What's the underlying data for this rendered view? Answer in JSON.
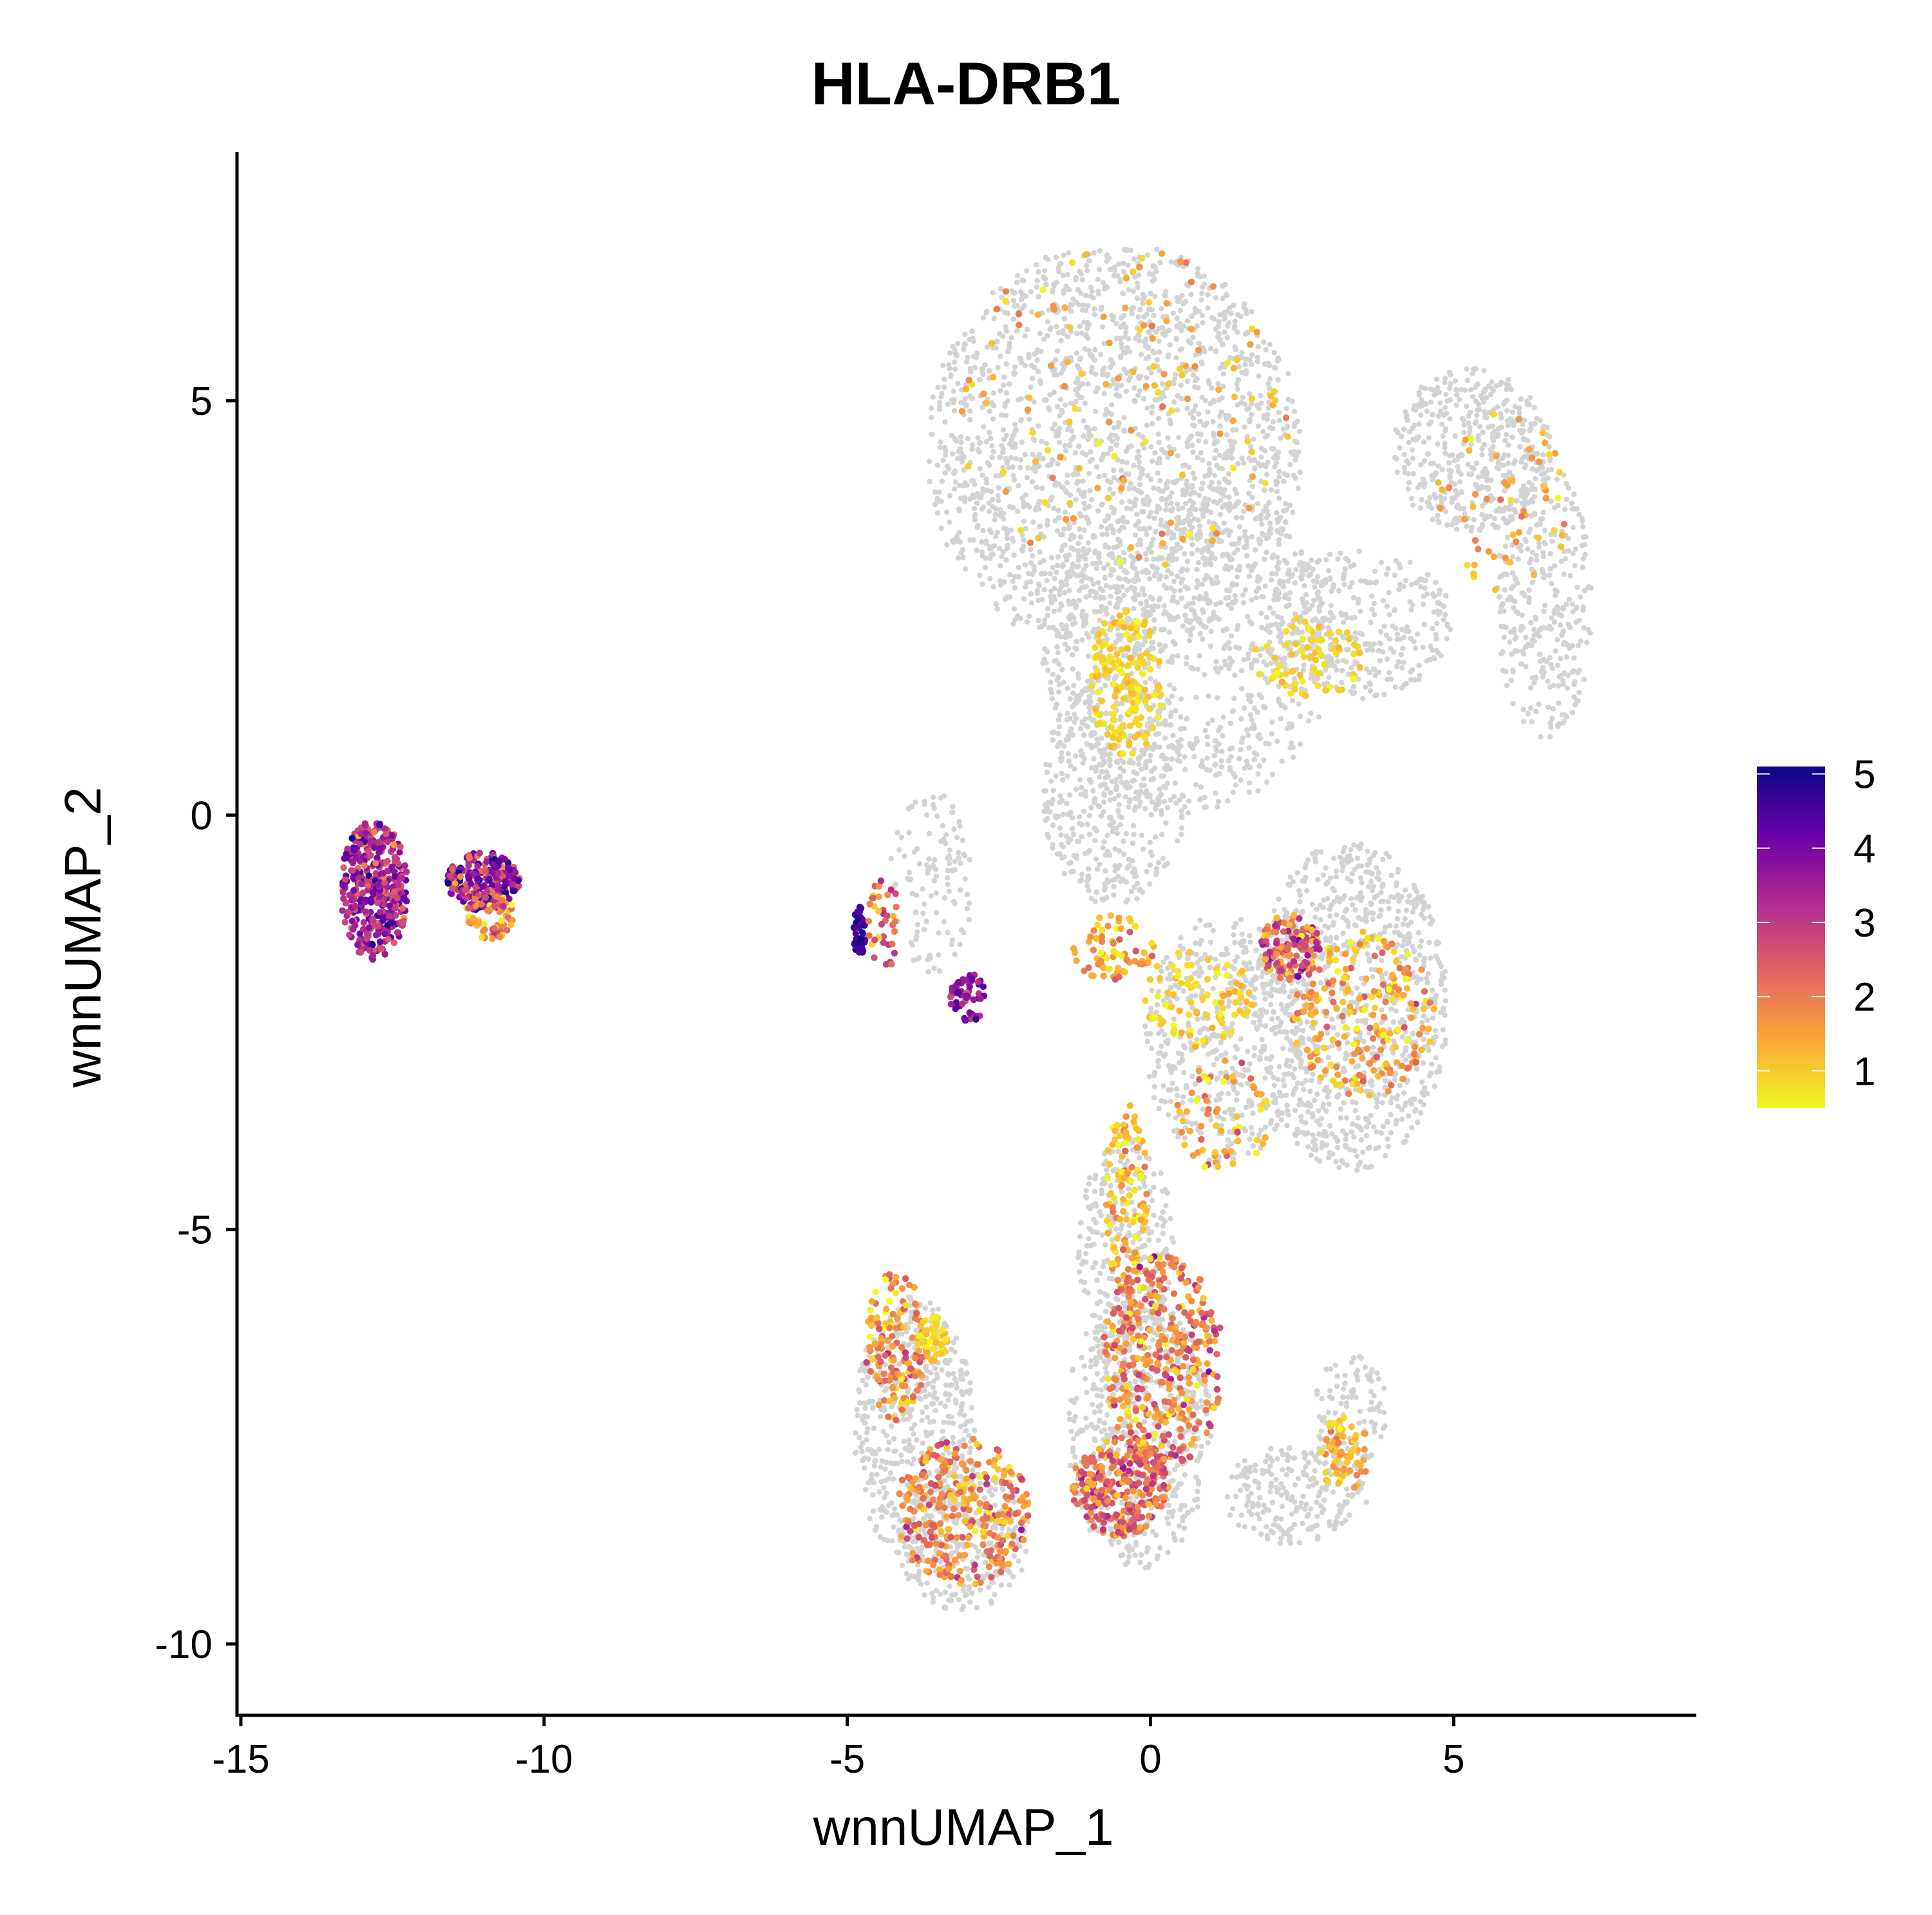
{
  "chart_data": {
    "type": "scatter",
    "title": "HLA-DRB1",
    "xlabel": "wnnUMAP_1",
    "ylabel": "wnnUMAP_2",
    "xlim": [
      -15,
      9
    ],
    "ylim": [
      -10.8,
      8
    ],
    "x_ticks": [
      -15,
      -10,
      -5,
      0,
      5
    ],
    "y_ticks": [
      -10,
      -5,
      0,
      5
    ],
    "x_tick_labels": [
      "-15",
      "-10",
      "-5",
      "0",
      "5"
    ],
    "y_tick_labels": [
      "-10",
      "-5",
      "0",
      "5"
    ],
    "grid": false,
    "legend": {
      "type": "colorbar",
      "placement": "right",
      "range": [
        0.5,
        5.1
      ],
      "ticks": [
        1,
        2,
        3,
        4,
        5
      ],
      "tick_labels": [
        "1",
        "2",
        "3",
        "4",
        "5"
      ]
    },
    "colors": {
      "background_cells": "#d3d3d3",
      "low": "#f0f921",
      "mid_low": "#fca636",
      "mid": "#e16462",
      "mid_high": "#b12a90",
      "high": "#6a00a8",
      "max": "#0d0887"
    },
    "series": [
      {
        "regions": [
          {
            "group": "background",
            "cx": -0.6,
            "cy": 4.4,
            "rx": 3.1,
            "ry": 2.5,
            "n": 1900,
            "value": 0
          },
          {
            "group": "background",
            "cx": 0.6,
            "cy": 2.0,
            "rx": 2.4,
            "ry": 2.0,
            "n": 900,
            "value": 0
          },
          {
            "group": "background",
            "cx": 5.3,
            "cy": 4.4,
            "rx": 1.3,
            "ry": 1.0,
            "n": 450,
            "value": 0
          },
          {
            "group": "background",
            "cx": 6.5,
            "cy": 2.6,
            "rx": 0.8,
            "ry": 1.7,
            "n": 320,
            "value": 0
          },
          {
            "group": "background",
            "cx": 3.4,
            "cy": 2.3,
            "rx": 1.6,
            "ry": 0.9,
            "n": 350,
            "value": 0
          },
          {
            "group": "background",
            "cx": -0.6,
            "cy": 0.3,
            "rx": 1.2,
            "ry": 1.4,
            "n": 420,
            "value": 0
          },
          {
            "group": "background",
            "cx": -3.6,
            "cy": -0.8,
            "rx": 0.7,
            "ry": 1.1,
            "n": 120,
            "value": 0
          },
          {
            "group": "background",
            "cx": 3.3,
            "cy": -2.3,
            "rx": 1.6,
            "ry": 2.0,
            "n": 900,
            "value": 0
          },
          {
            "group": "background",
            "cx": 1.2,
            "cy": -2.7,
            "rx": 1.3,
            "ry": 1.5,
            "n": 450,
            "value": 0
          },
          {
            "group": "background",
            "cx": -0.4,
            "cy": -5.2,
            "rx": 0.8,
            "ry": 1.3,
            "n": 280,
            "value": 0
          },
          {
            "group": "background",
            "cx": -3.9,
            "cy": -7.4,
            "rx": 1.0,
            "ry": 1.6,
            "n": 500,
            "value": 0
          },
          {
            "group": "background",
            "cx": -3.1,
            "cy": -8.7,
            "rx": 1.1,
            "ry": 0.9,
            "n": 300,
            "value": 0
          },
          {
            "group": "background",
            "cx": -0.2,
            "cy": -7.4,
            "rx": 1.2,
            "ry": 1.7,
            "n": 600,
            "value": 0
          },
          {
            "group": "background",
            "cx": 2.4,
            "cy": -8.2,
            "rx": 1.2,
            "ry": 0.6,
            "n": 220,
            "value": 0
          },
          {
            "group": "background",
            "cx": 3.3,
            "cy": -7.2,
            "rx": 0.6,
            "ry": 0.7,
            "n": 100,
            "value": 0
          },
          {
            "group": "expr",
            "cx": -12.8,
            "cy": -0.9,
            "rx": 0.55,
            "ry": 0.85,
            "n": 420,
            "value": 3.4,
            "spread": 0.7
          },
          {
            "group": "expr",
            "cx": -11.0,
            "cy": -0.8,
            "rx": 0.6,
            "ry": 0.35,
            "n": 230,
            "value": 3.6,
            "spread": 0.9
          },
          {
            "group": "expr",
            "cx": -10.9,
            "cy": -1.2,
            "rx": 0.4,
            "ry": 0.3,
            "n": 80,
            "value": 1.8,
            "spread": 0.8
          },
          {
            "group": "expr",
            "cx": -4.8,
            "cy": -1.4,
            "rx": 0.1,
            "ry": 0.3,
            "n": 45,
            "value": 4.7,
            "spread": 0.3
          },
          {
            "group": "expr",
            "cx": -3.0,
            "cy": -2.2,
            "rx": 0.3,
            "ry": 0.3,
            "n": 55,
            "value": 3.8,
            "spread": 0.5
          },
          {
            "group": "expr",
            "cx": -4.4,
            "cy": -1.3,
            "rx": 0.25,
            "ry": 0.6,
            "n": 40,
            "value": 2.0,
            "spread": 0.8
          },
          {
            "group": "expr",
            "cx": -0.4,
            "cy": 1.6,
            "rx": 0.6,
            "ry": 0.9,
            "n": 160,
            "value": 0.9,
            "spread": 0.2
          },
          {
            "group": "expr",
            "cx": 2.6,
            "cy": 1.9,
            "rx": 0.9,
            "ry": 0.5,
            "n": 70,
            "value": 0.9,
            "spread": 0.2
          },
          {
            "group": "expr",
            "cx": 2.3,
            "cy": -1.6,
            "rx": 0.5,
            "ry": 0.4,
            "n": 140,
            "value": 2.4,
            "spread": 0.7
          },
          {
            "group": "expr",
            "cx": 3.5,
            "cy": -2.4,
            "rx": 1.2,
            "ry": 1.0,
            "n": 220,
            "value": 1.4,
            "spread": 0.6
          },
          {
            "group": "expr",
            "cx": 0.8,
            "cy": -2.2,
            "rx": 0.9,
            "ry": 0.6,
            "n": 90,
            "value": 0.9,
            "spread": 0.3
          },
          {
            "group": "expr",
            "cx": -0.6,
            "cy": -1.6,
            "rx": 0.7,
            "ry": 0.4,
            "n": 70,
            "value": 1.5,
            "spread": 0.5
          },
          {
            "group": "expr",
            "cx": -0.4,
            "cy": -4.6,
            "rx": 0.35,
            "ry": 1.2,
            "n": 110,
            "value": 1.3,
            "spread": 0.5
          },
          {
            "group": "expr",
            "cx": 0.2,
            "cy": -6.6,
            "rx": 1.0,
            "ry": 1.3,
            "n": 380,
            "value": 2.0,
            "spread": 0.7
          },
          {
            "group": "expr",
            "cx": -0.5,
            "cy": -8.1,
            "rx": 0.8,
            "ry": 0.6,
            "n": 280,
            "value": 2.2,
            "spread": 0.6
          },
          {
            "group": "expr",
            "cx": -4.2,
            "cy": -6.4,
            "rx": 0.5,
            "ry": 0.9,
            "n": 150,
            "value": 1.7,
            "spread": 0.6
          },
          {
            "group": "expr",
            "cx": -3.6,
            "cy": -6.3,
            "rx": 0.25,
            "ry": 0.3,
            "n": 50,
            "value": 0.9,
            "spread": 0.2
          },
          {
            "group": "expr",
            "cx": -3.1,
            "cy": -8.4,
            "rx": 1.1,
            "ry": 0.9,
            "n": 300,
            "value": 1.8,
            "spread": 0.6
          },
          {
            "group": "expr",
            "cx": 1.2,
            "cy": -3.6,
            "rx": 0.8,
            "ry": 0.7,
            "n": 60,
            "value": 1.6,
            "spread": 0.6
          },
          {
            "group": "expr",
            "cx": 3.2,
            "cy": -7.7,
            "rx": 0.4,
            "ry": 0.5,
            "n": 70,
            "value": 1.3,
            "spread": 0.4
          },
          {
            "group": "expr",
            "cx": -0.5,
            "cy": 4.9,
            "rx": 2.8,
            "ry": 2.0,
            "n": 130,
            "value": 1.3,
            "spread": 0.4
          },
          {
            "group": "expr",
            "cx": 5.8,
            "cy": 3.8,
            "rx": 1.2,
            "ry": 1.1,
            "n": 55,
            "value": 1.3,
            "spread": 0.4
          }
        ]
      }
    ]
  }
}
